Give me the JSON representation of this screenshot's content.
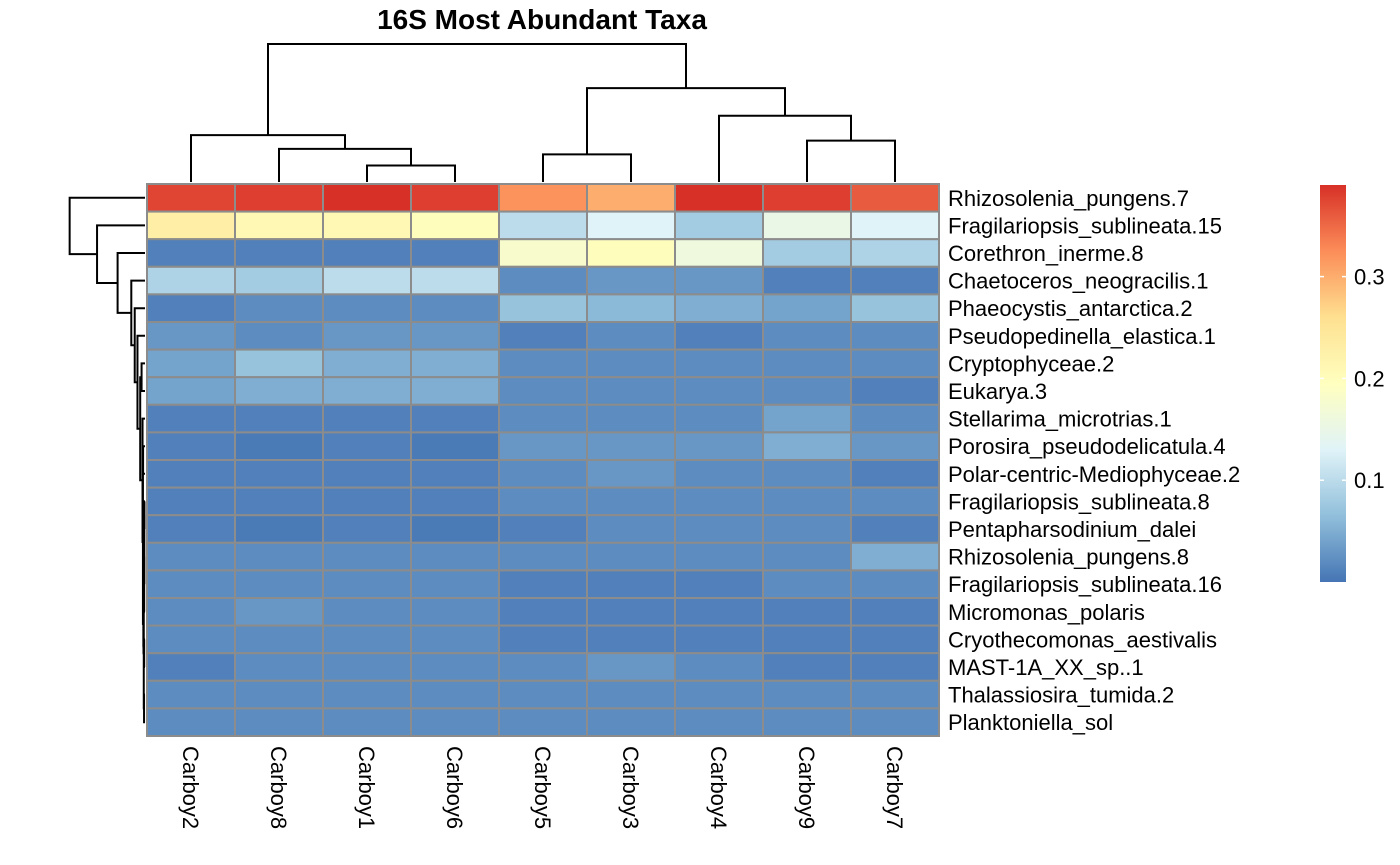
{
  "chart_data": {
    "type": "heatmap",
    "title": "16S Most Abundant Taxa",
    "columns": [
      "Carboy2",
      "Carboy8",
      "Carboy1",
      "Carboy6",
      "Carboy5",
      "Carboy3",
      "Carboy4",
      "Carboy9",
      "Carboy7"
    ],
    "rows": [
      "Rhizosolenia_pungens.7",
      "Fragilariopsis_sublineata.15",
      "Corethron_inerme.8",
      "Chaetoceros_neogracilis.1",
      "Phaeocystis_antarctica.2",
      "Pseudopedinella_elastica.1",
      "Cryptophyceae.2",
      "Eukarya.3",
      "Stellarima_microtrias.1",
      "Porosira_pseudodelicatula.4",
      "Polar-centric-Mediophyceae.2",
      "Fragilariopsis_sublineata.8",
      "Pentapharsodinium_dalei",
      "Rhizosolenia_pungens.8",
      "Fragilariopsis_sublineata.16",
      "Micromonas_polaris",
      "Cryothecomonas_aestivalis",
      "MAST-1A_XX_sp..1",
      "Thalassiosira_tumida.2",
      "Planktoniella_sol"
    ],
    "values": [
      [
        0.375,
        0.38,
        0.39,
        0.38,
        0.32,
        0.3,
        0.39,
        0.38,
        0.36
      ],
      [
        0.23,
        0.21,
        0.21,
        0.2,
        0.1,
        0.13,
        0.08,
        0.15,
        0.13
      ],
      [
        0.01,
        0.01,
        0.01,
        0.01,
        0.18,
        0.2,
        0.16,
        0.08,
        0.09
      ],
      [
        0.09,
        0.08,
        0.1,
        0.1,
        0.02,
        0.03,
        0.03,
        0.01,
        0.01
      ],
      [
        0.01,
        0.02,
        0.02,
        0.02,
        0.07,
        0.06,
        0.05,
        0.04,
        0.07
      ],
      [
        0.03,
        0.02,
        0.03,
        0.03,
        0.01,
        0.02,
        0.01,
        0.02,
        0.02
      ],
      [
        0.04,
        0.07,
        0.05,
        0.05,
        0.02,
        0.02,
        0.02,
        0.02,
        0.02
      ],
      [
        0.04,
        0.05,
        0.05,
        0.05,
        0.02,
        0.02,
        0.02,
        0.02,
        0.01
      ],
      [
        0.01,
        0.01,
        0.01,
        0.01,
        0.02,
        0.02,
        0.02,
        0.04,
        0.02
      ],
      [
        0.01,
        0.005,
        0.01,
        0.005,
        0.03,
        0.03,
        0.03,
        0.05,
        0.03
      ],
      [
        0.01,
        0.01,
        0.01,
        0.01,
        0.02,
        0.03,
        0.02,
        0.02,
        0.01
      ],
      [
        0.01,
        0.01,
        0.01,
        0.01,
        0.02,
        0.02,
        0.02,
        0.02,
        0.02
      ],
      [
        0.01,
        0.005,
        0.01,
        0.005,
        0.01,
        0.02,
        0.02,
        0.02,
        0.01
      ],
      [
        0.02,
        0.02,
        0.02,
        0.02,
        0.02,
        0.02,
        0.02,
        0.02,
        0.05
      ],
      [
        0.02,
        0.02,
        0.02,
        0.02,
        0.01,
        0.01,
        0.01,
        0.02,
        0.02
      ],
      [
        0.02,
        0.03,
        0.02,
        0.02,
        0.01,
        0.01,
        0.01,
        0.01,
        0.01
      ],
      [
        0.02,
        0.02,
        0.02,
        0.02,
        0.01,
        0.01,
        0.01,
        0.01,
        0.01
      ],
      [
        0.01,
        0.02,
        0.02,
        0.02,
        0.02,
        0.03,
        0.02,
        0.01,
        0.01
      ],
      [
        0.02,
        0.02,
        0.02,
        0.02,
        0.02,
        0.02,
        0.02,
        0.02,
        0.02
      ],
      [
        0.02,
        0.02,
        0.02,
        0.02,
        0.02,
        0.02,
        0.02,
        0.02,
        0.02
      ]
    ],
    "color_scale": {
      "min": 0.0,
      "max": 0.39,
      "ticks": [
        0.1,
        0.2,
        0.3
      ],
      "tick_labels": [
        "0.1",
        "0.2",
        "0.3"
      ],
      "palette": [
        "#4575B4",
        "#91BFDB",
        "#E0F3F8",
        "#FFFFBF",
        "#FEE090",
        "#FC8D59",
        "#D73027"
      ]
    },
    "dendrograms": {
      "columns": {
        "pairs": [
          [
            2,
            3,
            0.12
          ],
          [
            1,
            9,
            0.24
          ],
          [
            0,
            10,
            0.34
          ],
          [
            4,
            5,
            0.2
          ],
          [
            8,
            7,
            0.3
          ],
          [
            6,
            13,
            0.48
          ],
          [
            12,
            14,
            0.68
          ],
          [
            11,
            15,
            1.0
          ]
        ]
      },
      "rows": {
        "pairs": [
          [
            11,
            12,
            0.004
          ],
          [
            14,
            20,
            0.005
          ],
          [
            13,
            15,
            0.006
          ],
          [
            16,
            17,
            0.006
          ],
          [
            18,
            19,
            0.007
          ],
          [
            22,
            24,
            0.009
          ],
          [
            21,
            23,
            0.011
          ],
          [
            25,
            26,
            0.012
          ],
          [
            9,
            10,
            0.014
          ],
          [
            27,
            28,
            0.015
          ],
          [
            8,
            29,
            0.018
          ],
          [
            6,
            7,
            0.025
          ],
          [
            30,
            31,
            0.035
          ],
          [
            5,
            32,
            0.055
          ],
          [
            4,
            33,
            0.075
          ],
          [
            3,
            34,
            0.1
          ],
          [
            2,
            35,
            0.2
          ],
          [
            1,
            36,
            0.35
          ],
          [
            0,
            37,
            0.55
          ]
        ]
      }
    }
  }
}
